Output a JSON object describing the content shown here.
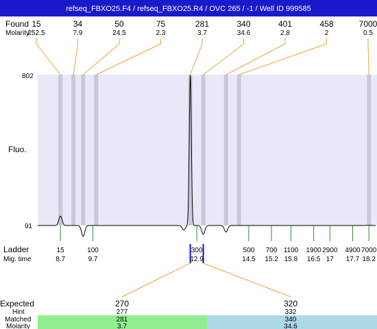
{
  "title": "refseq_FBXO25.F4 / refseq_FBXO25.R4 / OVC 265 / -1 / Well ID 999585",
  "labels": {
    "found": "Found",
    "molarity": "Molarity",
    "fluo": "Fluo.",
    "ladder": "Ladder",
    "mig_time": "Mig. time",
    "expected": "Expected",
    "hint": "Hint",
    "matched": "Matched",
    "molarity_bottom": "Molarity"
  },
  "colors": {
    "title_bar": "#1a1acc",
    "plot_bg": "#e8e8f8",
    "peak_band": "#c8c8d8",
    "leader_line": "#f0a030",
    "ladder_tick": "#2e8b2e",
    "ladder_marker": "#1010c0",
    "matched_left": "#90ee90",
    "matched_right": "#add8e6"
  },
  "chart_data": {
    "type": "line",
    "title": "refseq_FBXO25.F4 / refseq_FBXO25.R4 / OVC 265 / -1 / Well ID 999585",
    "ylabel": "Fluo.",
    "y_ticks": [
      "802",
      "91"
    ],
    "ylim": [
      91,
      802
    ],
    "found_peaks": [
      {
        "size": "15",
        "molarity": "252.5",
        "mig_time": 8.7
      },
      {
        "size": "34",
        "molarity": "7.9",
        "mig_time": 9.1
      },
      {
        "size": "50",
        "molarity": "24.5",
        "mig_time": 9.4
      },
      {
        "size": "75",
        "molarity": "2.3",
        "mig_time": 9.8
      },
      {
        "size": "281",
        "molarity": "3.7",
        "mig_time": 12.7
      },
      {
        "size": "340",
        "molarity": "34.6",
        "mig_time": 13.1
      },
      {
        "size": "401",
        "molarity": "2.8",
        "mig_time": 13.8
      },
      {
        "size": "458",
        "molarity": "2",
        "mig_time": 14.2
      },
      {
        "size": "7000",
        "molarity": "0.5",
        "mig_time": 18.2
      }
    ],
    "ladder": [
      {
        "size": "15",
        "mig_time": "8.7"
      },
      {
        "size": "100",
        "mig_time": "9.7"
      },
      {
        "size": "300",
        "mig_time": "12.9"
      },
      {
        "size": "500",
        "mig_time": "14.5"
      },
      {
        "size": "700",
        "mig_time": "15.2"
      },
      {
        "size": "1100",
        "mig_time": "15.8"
      },
      {
        "size": "1900",
        "mig_time": "16.5"
      },
      {
        "size": "2900",
        "mig_time": "17"
      },
      {
        "size": "4900",
        "mig_time": "17.7"
      },
      {
        "size": "7000",
        "mig_time": "18.2"
      }
    ],
    "trace_peaks": [
      {
        "mig_time": 8.7,
        "height": 135
      },
      {
        "mig_time": 9.4,
        "height": 40
      },
      {
        "mig_time": 12.5,
        "height": 70
      },
      {
        "mig_time": 12.7,
        "height": 802
      },
      {
        "mig_time": 13.1,
        "height": 50
      },
      {
        "mig_time": 13.8,
        "height": 60
      },
      {
        "mig_time": 18.2,
        "height": 92
      }
    ],
    "trace_baseline": 91
  },
  "expected": [
    {
      "expected": "270",
      "hint": "277",
      "matched": "281",
      "molarity": "3.7",
      "mig_time": 12.7
    },
    {
      "expected": "320",
      "hint": "332",
      "matched": "340",
      "molarity": "34.6",
      "mig_time": 13.1
    }
  ]
}
